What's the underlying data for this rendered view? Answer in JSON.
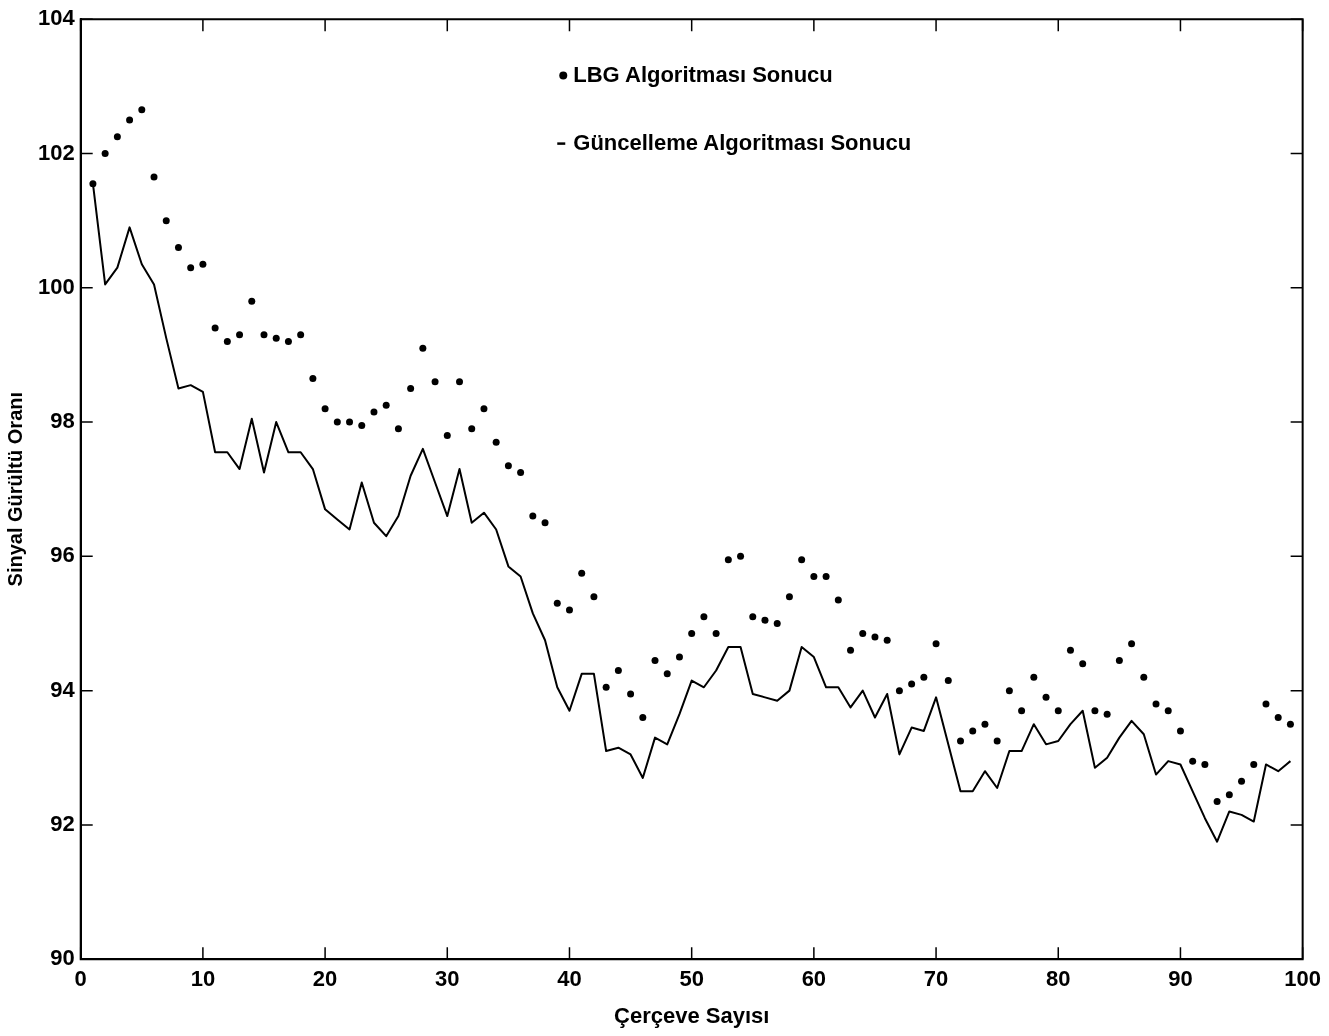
{
  "chart_data": {
    "type": "line",
    "xlabel": "Çerçeve Sayısı",
    "ylabel": "Sinyal Gürültü Oranı",
    "x": [
      1,
      2,
      3,
      4,
      5,
      6,
      7,
      8,
      9,
      10,
      11,
      12,
      13,
      14,
      15,
      16,
      17,
      18,
      19,
      20,
      21,
      22,
      23,
      24,
      25,
      26,
      27,
      28,
      29,
      30,
      31,
      32,
      33,
      34,
      35,
      36,
      37,
      38,
      39,
      40,
      41,
      42,
      43,
      44,
      45,
      46,
      47,
      48,
      49,
      50,
      51,
      52,
      53,
      54,
      55,
      56,
      57,
      58,
      59,
      60,
      61,
      62,
      63,
      64,
      65,
      66,
      67,
      68,
      69,
      70,
      71,
      72,
      73,
      74,
      75,
      76,
      77,
      78,
      79,
      80,
      81,
      82,
      83,
      84,
      85,
      86,
      87,
      88,
      89,
      90,
      91,
      92,
      93,
      94,
      95,
      96,
      97,
      98,
      99
    ],
    "series": [
      {
        "name": "LBG Algoritması Sonucu",
        "type": "scatter",
        "marker": "circle",
        "color": "#000000",
        "values": [
          101.55,
          102.0,
          102.25,
          102.5,
          102.65,
          101.65,
          101.0,
          100.6,
          100.3,
          100.35,
          99.4,
          99.2,
          99.3,
          99.8,
          99.3,
          99.25,
          99.2,
          99.3,
          98.65,
          98.2,
          98.0,
          98.0,
          97.95,
          98.15,
          98.25,
          97.9,
          98.5,
          99.1,
          98.6,
          97.8,
          98.6,
          97.9,
          98.2,
          97.7,
          97.35,
          97.25,
          96.6,
          96.5,
          95.3,
          95.2,
          95.75,
          95.4,
          94.05,
          94.3,
          93.95,
          93.6,
          94.45,
          94.25,
          94.5,
          94.85,
          95.1,
          94.85,
          95.95,
          96.0,
          95.1,
          95.05,
          95.0,
          95.4,
          95.95,
          95.7,
          95.7,
          95.35,
          94.6,
          94.85,
          94.8,
          94.75,
          94.0,
          94.1,
          94.2,
          94.7,
          94.15,
          93.25,
          93.4,
          93.5,
          93.25,
          94.0,
          93.7,
          94.2,
          93.9,
          93.7,
          94.6,
          94.4,
          93.7,
          93.65,
          94.45,
          94.7,
          94.2,
          93.8,
          93.7,
          93.4,
          92.95,
          92.9,
          92.35,
          92.45,
          92.65,
          92.9,
          93.8,
          93.6,
          93.5
        ]
      },
      {
        "name": "Güncelleme Algoritması Sonucu",
        "line_style": "solid",
        "color": "#000000",
        "values": [
          101.55,
          100.05,
          100.3,
          100.9,
          100.35,
          100.05,
          99.25,
          98.5,
          98.55,
          98.45,
          97.55,
          97.55,
          97.3,
          98.05,
          97.25,
          98.0,
          97.55,
          97.55,
          97.3,
          96.7,
          96.55,
          96.4,
          97.1,
          96.5,
          96.3,
          96.6,
          97.2,
          97.6,
          97.1,
          96.6,
          97.3,
          96.5,
          96.65,
          96.4,
          95.85,
          95.7,
          95.15,
          94.75,
          94.05,
          93.7,
          94.25,
          94.25,
          93.1,
          93.15,
          93.05,
          92.7,
          93.3,
          93.2,
          93.65,
          94.15,
          94.05,
          94.3,
          94.65,
          94.65,
          93.95,
          93.9,
          93.85,
          94.0,
          94.65,
          94.5,
          94.05,
          94.05,
          93.75,
          94.0,
          93.6,
          93.95,
          93.05,
          93.45,
          93.4,
          93.9,
          93.2,
          92.5,
          92.5,
          92.8,
          92.55,
          93.1,
          93.1,
          93.5,
          93.2,
          93.25,
          93.5,
          93.7,
          92.85,
          93.0,
          93.3,
          93.55,
          93.35,
          92.75,
          92.95,
          92.9,
          92.5,
          92.1,
          91.75,
          92.2,
          92.15,
          92.05,
          92.9,
          92.8,
          92.95
        ]
      }
    ],
    "xlim": [
      0,
      100
    ],
    "xticks": [
      0,
      10,
      20,
      30,
      40,
      50,
      60,
      70,
      80,
      90,
      100
    ],
    "ylim": [
      90,
      104
    ],
    "yticks": [
      90,
      92,
      94,
      96,
      98,
      100,
      102,
      104
    ],
    "grid": false,
    "legend": "top"
  }
}
